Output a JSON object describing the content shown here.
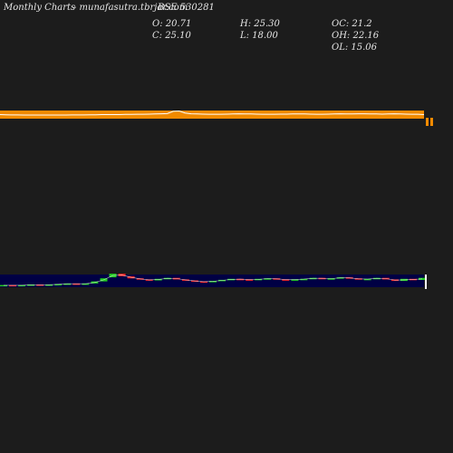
{
  "header": {
    "title": "Monthly Charts",
    "site": "- munafasutra.tbrjar.com",
    "symbol": "BSE 530281",
    "open_label": "O: 20.71",
    "close_label": "C: 25.10",
    "high_label": "H: 25.30",
    "low_label": "L: 18.00",
    "oc_label": "OC: 21.2",
    "oh_label": "OH: 22.16",
    "ol_label": "OL: 15.06"
  },
  "colors": {
    "background": "#1c1c1c",
    "price_band": "#f08a00",
    "price_line": "#ffffff",
    "volume_panel": "#000044",
    "up": "#22cc22",
    "down": "#ee2222"
  },
  "chart_data": {
    "type": "candlestick",
    "price_line": [
      50,
      49,
      48,
      48,
      47,
      47,
      47,
      47,
      47,
      47,
      47,
      47,
      48,
      48,
      48,
      49,
      49,
      50,
      50,
      50,
      50,
      51,
      51,
      52,
      52,
      53,
      54,
      55,
      56,
      70,
      72,
      60,
      55,
      54,
      53,
      52,
      52,
      52,
      53,
      54,
      55,
      54,
      54,
      53,
      52,
      52,
      52,
      53,
      53,
      54,
      54,
      54,
      53,
      52,
      52,
      53,
      54,
      55,
      54,
      54,
      55,
      55,
      54,
      54,
      53,
      54,
      55,
      54,
      53,
      52,
      52,
      50
    ],
    "candles": [
      {
        "o": 10,
        "c": 11
      },
      {
        "o": 11,
        "c": 10
      },
      {
        "o": 10,
        "c": 11
      },
      {
        "o": 11,
        "c": 12
      },
      {
        "o": 12,
        "c": 11
      },
      {
        "o": 11,
        "c": 12
      },
      {
        "o": 12,
        "c": 13
      },
      {
        "o": 13,
        "c": 14
      },
      {
        "o": 14,
        "c": 13
      },
      {
        "o": 13,
        "c": 14
      },
      {
        "o": 14,
        "c": 18
      },
      {
        "o": 18,
        "c": 24
      },
      {
        "o": 26,
        "c": 33
      },
      {
        "o": 33,
        "c": 28
      },
      {
        "o": 28,
        "c": 24
      },
      {
        "o": 24,
        "c": 22
      },
      {
        "o": 22,
        "c": 20
      },
      {
        "o": 20,
        "c": 23
      },
      {
        "o": 23,
        "c": 25
      },
      {
        "o": 25,
        "c": 22
      },
      {
        "o": 22,
        "c": 20
      },
      {
        "o": 20,
        "c": 18
      },
      {
        "o": 18,
        "c": 17
      },
      {
        "o": 17,
        "c": 19
      },
      {
        "o": 19,
        "c": 21
      },
      {
        "o": 21,
        "c": 23
      },
      {
        "o": 23,
        "c": 22
      },
      {
        "o": 22,
        "c": 21
      },
      {
        "o": 21,
        "c": 23
      },
      {
        "o": 23,
        "c": 24
      },
      {
        "o": 24,
        "c": 22
      },
      {
        "o": 22,
        "c": 21
      },
      {
        "o": 21,
        "c": 22
      },
      {
        "o": 22,
        "c": 23
      },
      {
        "o": 23,
        "c": 25
      },
      {
        "o": 25,
        "c": 23
      },
      {
        "o": 23,
        "c": 24
      },
      {
        "o": 24,
        "c": 26
      },
      {
        "o": 26,
        "c": 24
      },
      {
        "o": 24,
        "c": 22
      },
      {
        "o": 22,
        "c": 23
      },
      {
        "o": 23,
        "c": 25
      },
      {
        "o": 25,
        "c": 22
      },
      {
        "o": 22,
        "c": 19
      },
      {
        "o": 19,
        "c": 23
      },
      {
        "o": 23,
        "c": 21
      },
      {
        "o": 21,
        "c": 25
      }
    ]
  }
}
